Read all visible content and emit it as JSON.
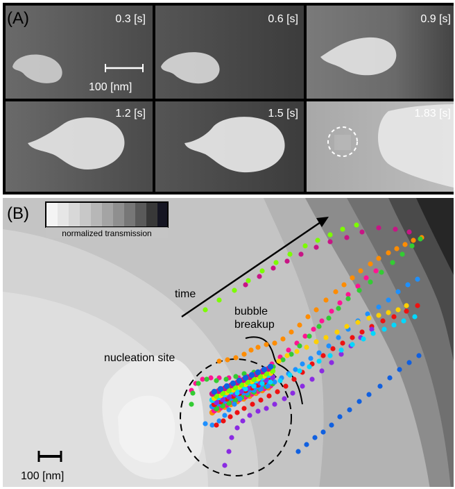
{
  "panel_a": {
    "label": "(A)",
    "scale_bar_label": "100 [nm]",
    "frames": [
      {
        "time": "0.3 [s]"
      },
      {
        "time": "0.6 [s]"
      },
      {
        "time": "0.9 [s]"
      },
      {
        "time": "1.2 [s]"
      },
      {
        "time": "1.5 [s]"
      },
      {
        "time": "1.83 [s]"
      }
    ]
  },
  "panel_b": {
    "label": "(B)",
    "colorbar_label": "normalized transmission",
    "annotations": {
      "time": "time",
      "bubble": "bubble",
      "breakup": "breakup",
      "nucleation_site": "nucleation site"
    },
    "scale_bar_label": "100 [nm]"
  },
  "colors": {
    "trajectories": [
      "#ff8c00",
      "#ff1493",
      "#33cc33",
      "#1e90ff",
      "#ee1111",
      "#8a2be2",
      "#00d8ff",
      "#ffd000",
      "#7cfc00",
      "#c71585",
      "#1060e0"
    ]
  }
}
